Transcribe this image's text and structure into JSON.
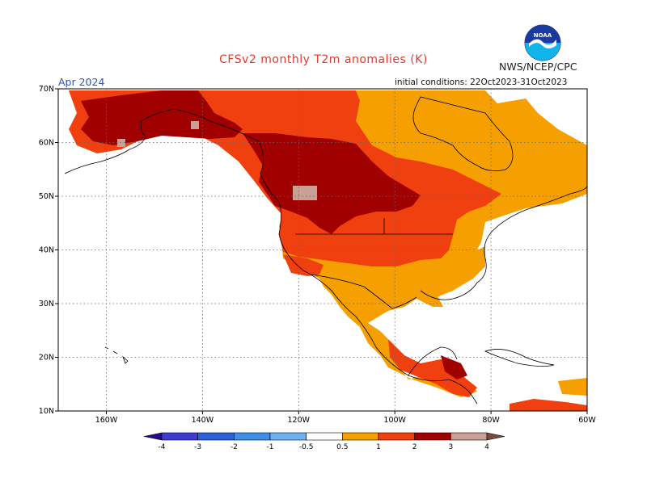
{
  "title": "CFSv2 monthly T2m anomalies (K)",
  "organization": "NWS/NCEP/CPC",
  "logo_text": "NOAA",
  "valid_month": "Apr 2024",
  "initial_conditions": "initial conditions: 22Oct2023-31Oct2023",
  "map": {
    "lon_range": [
      -170,
      -60
    ],
    "lat_range": [
      10,
      70
    ],
    "lon_ticks": [
      {
        "lon": -160,
        "label": "160W"
      },
      {
        "lon": -140,
        "label": "140W"
      },
      {
        "lon": -120,
        "label": "120W"
      },
      {
        "lon": -100,
        "label": "100W"
      },
      {
        "lon": -80,
        "label": "80W"
      },
      {
        "lon": -60,
        "label": "60W"
      }
    ],
    "lat_ticks": [
      {
        "lat": 10,
        "label": "10N"
      },
      {
        "lat": 20,
        "label": "20N"
      },
      {
        "lat": 30,
        "label": "30N"
      },
      {
        "lat": 40,
        "label": "40N"
      },
      {
        "lat": 50,
        "label": "50N"
      },
      {
        "lat": 60,
        "label": "60N"
      },
      {
        "lat": 70,
        "label": "70N"
      }
    ],
    "grid": true
  },
  "colorbar": {
    "levels": [
      "-4",
      "-3",
      "-2",
      "-1",
      "-0.5",
      "0.5",
      "1",
      "2",
      "3",
      "4"
    ],
    "colors": [
      "#2a0a8c",
      "#3c3cd2",
      "#2a62d8",
      "#3c8ee6",
      "#6cb2f2",
      "#ffffff",
      "#f5a000",
      "#f04010",
      "#a00000",
      "#c8a096",
      "#7a4a3c"
    ]
  },
  "anomaly_colors": {
    "0.5-1": "#f5a000",
    "1-2": "#f04010",
    "2-3": "#a00000",
    "3-4": "#c8a096"
  }
}
